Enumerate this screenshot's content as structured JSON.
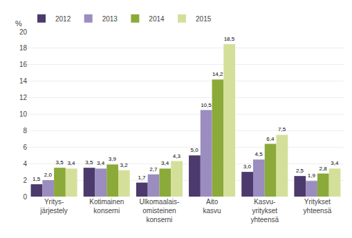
{
  "chart_data": {
    "type": "bar",
    "categories": [
      "Yritys-\njärjestely",
      "Kotimainen\nkonserni",
      "Ulkomaalais-\nomisteinen\nkonserni",
      "Aito\nkasvu",
      "Kasvu-\nyritykset\nyhteensä",
      "Yritykset\nyhteensä"
    ],
    "series": [
      {
        "name": "2012",
        "color": "#4B3A6B",
        "values": [
          1.5,
          3.5,
          1.7,
          5.0,
          3.0,
          2.5
        ],
        "value_labels": [
          "1,5",
          "3,5",
          "1,7",
          "5,0",
          "3,0",
          "2,5"
        ]
      },
      {
        "name": "2013",
        "color": "#9B8DC0",
        "values": [
          2.0,
          3.4,
          2.7,
          10.5,
          4.5,
          1.9
        ],
        "value_labels": [
          "2,0",
          "3,4",
          "2,7",
          "10,5",
          "4,5",
          "1,9"
        ]
      },
      {
        "name": "2014",
        "color": "#8BAA3A",
        "values": [
          3.5,
          3.9,
          3.4,
          14.2,
          6.4,
          2.8
        ],
        "value_labels": [
          "3,5",
          "3,9",
          "3,4",
          "14,2",
          "6,4",
          "2,8"
        ]
      },
      {
        "name": "2015",
        "color": "#D4E09A",
        "values": [
          3.4,
          3.2,
          4.3,
          18.5,
          7.5,
          3.4
        ],
        "value_labels": [
          "3,4",
          "3,2",
          "4,3",
          "18,5",
          "7,5",
          "3,4"
        ]
      }
    ],
    "ylim": [
      0,
      20
    ],
    "yticks": [
      0,
      2,
      4,
      6,
      8,
      10,
      12,
      14,
      16,
      18,
      20
    ],
    "ylabel": "%",
    "grid": true,
    "legend": "upper left",
    "data_labels": true
  }
}
